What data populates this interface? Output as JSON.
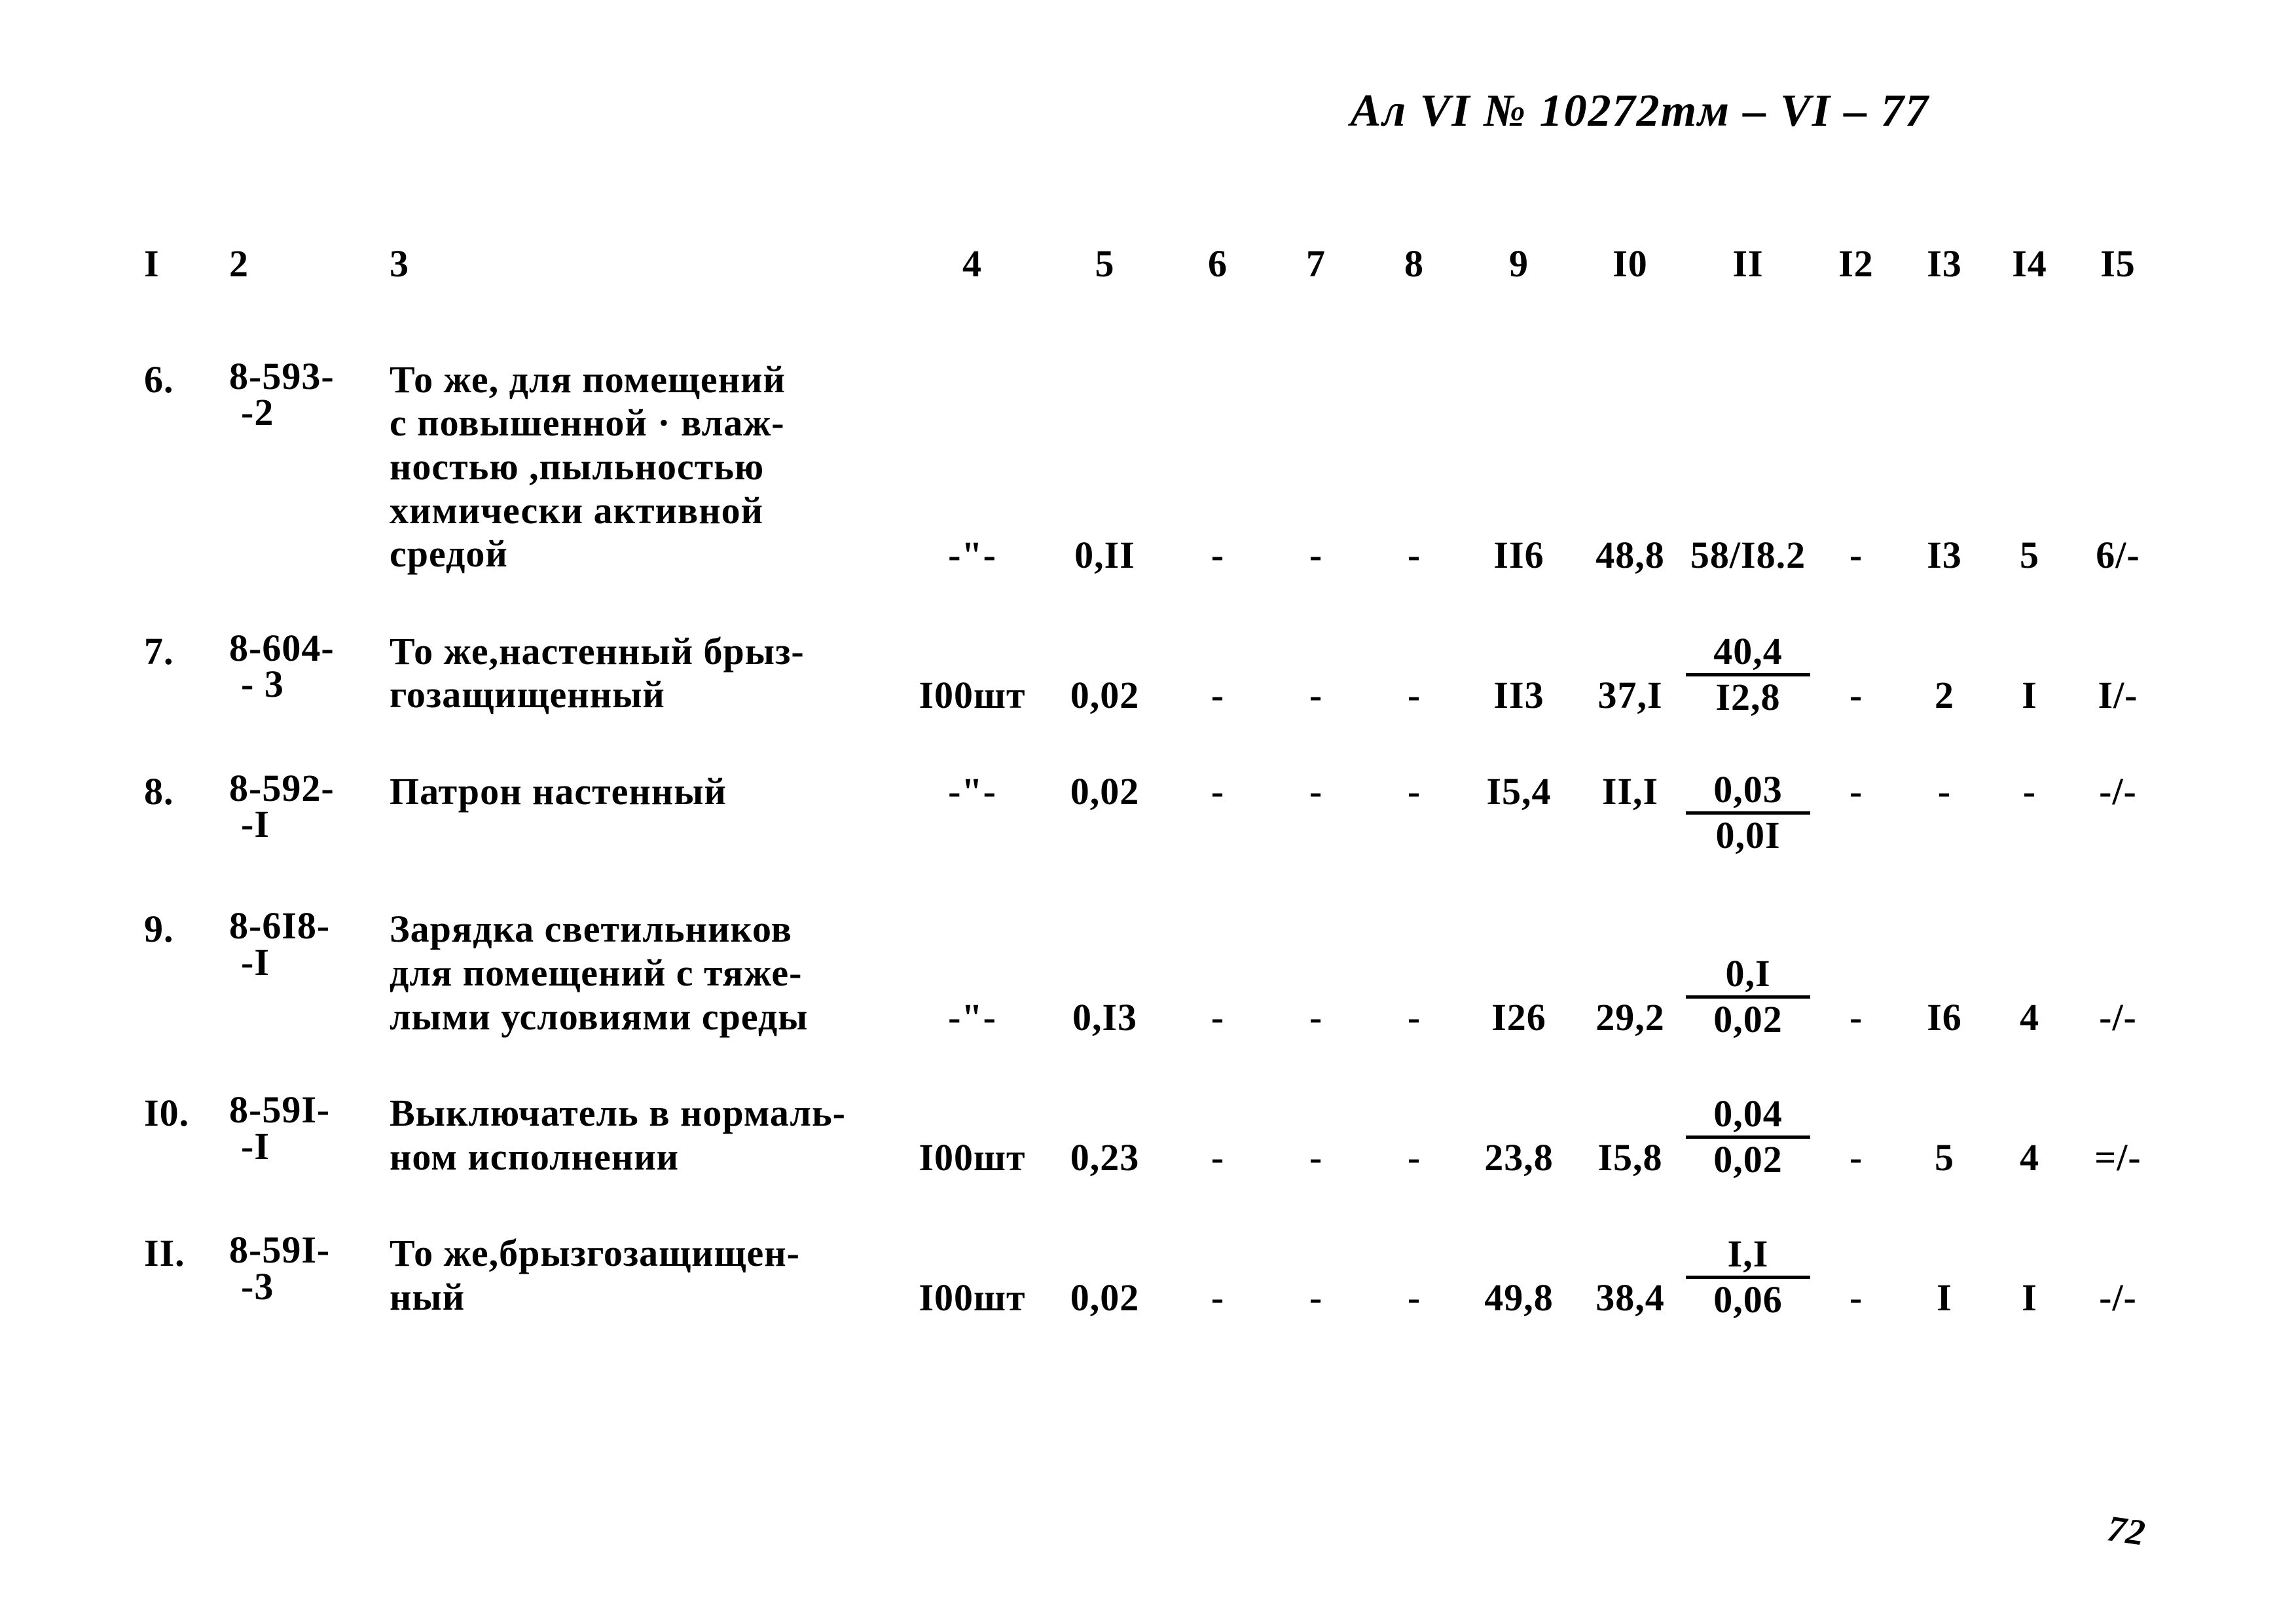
{
  "header": "Ал VI  № 10272тм – VI – 77",
  "pagenum": "72",
  "columns": [
    "I",
    "2",
    "3",
    "4",
    "5",
    "6",
    "7",
    "8",
    "9",
    "I0",
    "II",
    "I2",
    "I3",
    "I4",
    "I5"
  ],
  "rows": [
    {
      "c1": "6.",
      "c2": {
        "l1": "8-593-",
        "l2": "-2"
      },
      "c3": "То же, для помещений\nс повышенной · влаж-\nностью ,пыльностью\nхимически активной\nсредой",
      "c4": "-\"-",
      "c5": "0,II",
      "c6": "-",
      "c7": "-",
      "c8": "-",
      "c9": "II6",
      "c10": "48,8",
      "c11": "58/I8.2",
      "c12": "-",
      "c13": "I3",
      "c14": "5",
      "c15": "6/-"
    },
    {
      "c1": "7.",
      "c2": {
        "l1": "8-604-",
        "l2": "- 3"
      },
      "c3": "То же,настенный брыз-\nгозащищенный",
      "c4": "I00шт",
      "c5": "0,02",
      "c6": "-",
      "c7": "-",
      "c8": "-",
      "c9": "II3",
      "c10": "37,I",
      "c11": {
        "num": "40,4",
        "den": "I2,8"
      },
      "c12": "-",
      "c13": "2",
      "c14": "I",
      "c15": "I/-"
    },
    {
      "c1": "8.",
      "c2": {
        "l1": "8-592-",
        "l2": "-I"
      },
      "c3": "Патрон настенный",
      "c4": "-\"-",
      "c5": "0,02",
      "c6": "-",
      "c7": "-",
      "c8": "-",
      "c9": "I5,4",
      "c10": "II,I",
      "c11": {
        "num": "0,03",
        "den": "0,0I"
      },
      "c12": "-",
      "c13": "-",
      "c14": "-",
      "c15": "-/-"
    },
    {
      "c1": "9.",
      "c2": {
        "l1": "8-6I8-",
        "l2": "-I"
      },
      "c3": "Зарядка светильников\nдля помещений с тяже-\nлыми условиями среды",
      "c4": "-\"-",
      "c5": "0,I3",
      "c6": "-",
      "c7": "-",
      "c8": "-",
      "c9": "I26",
      "c10": "29,2",
      "c11": {
        "num": "0,I",
        "den": "0,02"
      },
      "c12": "-",
      "c13": "I6",
      "c14": "4",
      "c15": "-/-"
    },
    {
      "c1": "I0.",
      "c2": {
        "l1": "8-59I-",
        "l2": "-I"
      },
      "c3": "Выключатель в нормаль-\nном исполнении",
      "c4": "I00шт",
      "c5": "0,23",
      "c6": "-",
      "c7": "-",
      "c8": "-",
      "c9": "23,8",
      "c10": "I5,8",
      "c11": {
        "num": "0,04",
        "den": "0,02"
      },
      "c12": "-",
      "c13": "5",
      "c14": "4",
      "c15": "=/-"
    },
    {
      "c1": "II.",
      "c2": {
        "l1": "8-59I-",
        "l2": "-3"
      },
      "c3": "То же,брызгозащищен-\nный",
      "c4": "I00шт",
      "c5": "0,02",
      "c6": "-",
      "c7": "-",
      "c8": "-",
      "c9": "49,8",
      "c10": "38,4",
      "c11": {
        "num": "I,I",
        "den": "0,06"
      },
      "c12": "-",
      "c13": "I",
      "c14": "I",
      "c15": "-/-"
    }
  ]
}
